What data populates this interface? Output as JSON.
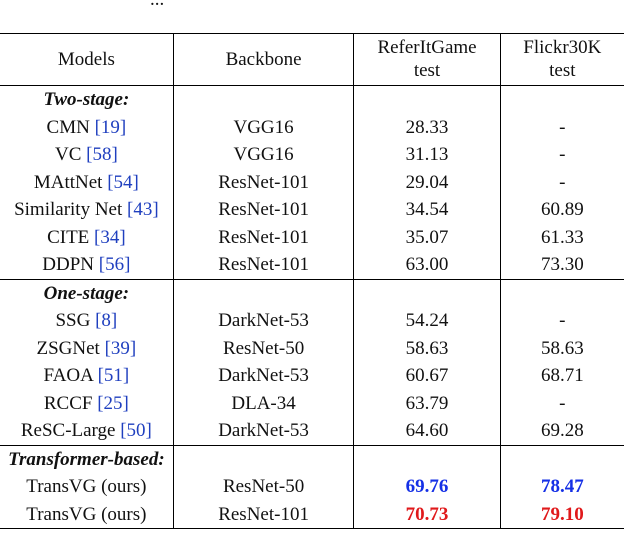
{
  "clipped_caption": "...",
  "header": {
    "models": "Models",
    "backbone": "Backbone",
    "refer_l1": "ReferItGame",
    "refer_l2": "test",
    "flickr_l1": "Flickr30K",
    "flickr_l2": "test"
  },
  "sections": {
    "two_stage": "Two-stage:",
    "one_stage": "One-stage:",
    "transformer": "Transformer-based:"
  },
  "rows": [
    {
      "name": "CMN",
      "ref": "[19]",
      "backbone": "VGG16",
      "referit": "28.33",
      "flickr": "-"
    },
    {
      "name": "VC",
      "ref": "[58]",
      "backbone": "VGG16",
      "referit": "31.13",
      "flickr": "-"
    },
    {
      "name": "MAttNet",
      "ref": "[54]",
      "backbone": "ResNet-101",
      "referit": "29.04",
      "flickr": "-"
    },
    {
      "name": "Similarity Net",
      "ref": "[43]",
      "backbone": "ResNet-101",
      "referit": "34.54",
      "flickr": "60.89"
    },
    {
      "name": "CITE",
      "ref": "[34]",
      "backbone": "ResNet-101",
      "referit": "35.07",
      "flickr": "61.33"
    },
    {
      "name": "DDPN",
      "ref": "[56]",
      "backbone": "ResNet-101",
      "referit": "63.00",
      "flickr": "73.30"
    },
    {
      "name": "SSG",
      "ref": "[8]",
      "backbone": "DarkNet-53",
      "referit": "54.24",
      "flickr": "-"
    },
    {
      "name": "ZSGNet",
      "ref": "[39]",
      "backbone": "ResNet-50",
      "referit": "58.63",
      "flickr": "58.63"
    },
    {
      "name": "FAOA",
      "ref": "[51]",
      "backbone": "DarkNet-53",
      "referit": "60.67",
      "flickr": "68.71"
    },
    {
      "name": "RCCF",
      "ref": "[25]",
      "backbone": "DLA-34",
      "referit": "63.79",
      "flickr": "-"
    },
    {
      "name": "ReSC-Large",
      "ref": "[50]",
      "backbone": "DarkNet-53",
      "referit": "64.60",
      "flickr": "69.28"
    },
    {
      "name": "TransVG (ours)",
      "ref": "",
      "backbone": "ResNet-50",
      "referit": "69.76",
      "flickr": "78.47"
    },
    {
      "name": "TransVG (ours)",
      "ref": "",
      "backbone": "ResNet-101",
      "referit": "70.73",
      "flickr": "79.10"
    }
  ],
  "colors": {
    "best": "#e0191b",
    "second_best": "#1530e6",
    "citation": "#1f3fbf"
  }
}
